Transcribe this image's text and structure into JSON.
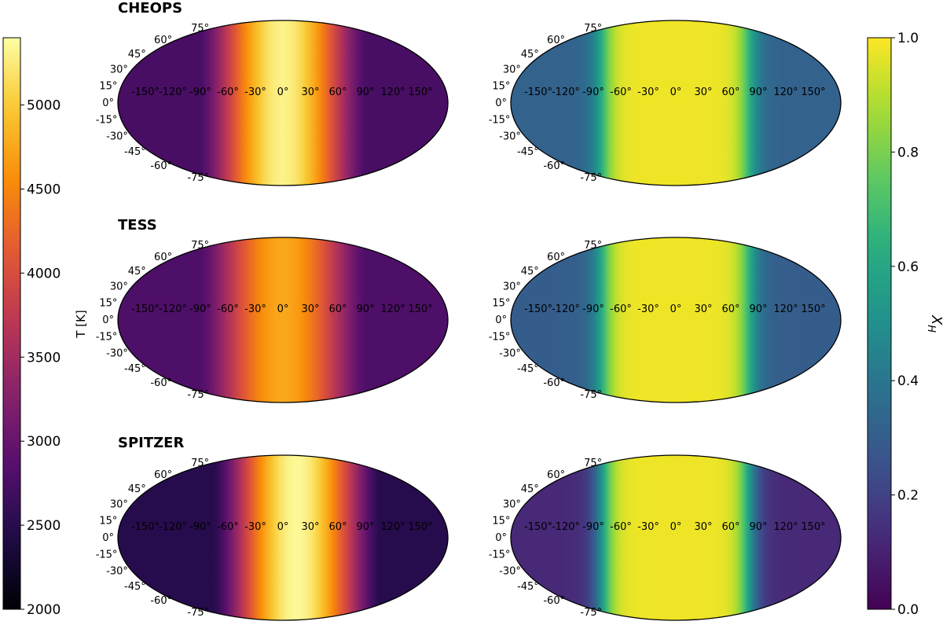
{
  "chart_data": [
    {
      "type": "heatmap",
      "projection": "mollweide",
      "title": "CHEOPS",
      "quantity": "T [K]",
      "colormap": "inferno",
      "longitude_ticks": [
        "-150°",
        "-120°",
        "-90°",
        "-60°",
        "-30°",
        "0°",
        "30°",
        "60°",
        "90°",
        "120°",
        "150°"
      ],
      "latitude_ticks": [
        "75°",
        "60°",
        "45°",
        "30°",
        "15°",
        "0°",
        "-15°",
        "-30°",
        "-45°",
        "-60°",
        "-75°"
      ],
      "hotspot_longitude_deg": 0,
      "max_value": 5300,
      "nightside_value": 2750
    },
    {
      "type": "heatmap",
      "projection": "mollweide",
      "title": "",
      "quantity": "X_H",
      "colormap": "viridis",
      "longitude_ticks": [
        "-150°",
        "-120°",
        "-90°",
        "-60°",
        "-30°",
        "0°",
        "30°",
        "60°",
        "90°",
        "120°",
        "150°"
      ],
      "latitude_ticks": [
        "75°",
        "60°",
        "45°",
        "30°",
        "15°",
        "0°",
        "-15°",
        "-30°",
        "-45°",
        "-60°",
        "-75°"
      ],
      "plateau_value": 0.98,
      "plateau_halfwidth_deg": 80,
      "nightside_value": 0.32
    },
    {
      "type": "heatmap",
      "projection": "mollweide",
      "title": "TESS",
      "quantity": "T [K]",
      "colormap": "inferno",
      "longitude_ticks": [
        "-150°",
        "-120°",
        "-90°",
        "-60°",
        "-30°",
        "0°",
        "30°",
        "60°",
        "90°",
        "120°",
        "150°"
      ],
      "latitude_ticks": [
        "75°",
        "60°",
        "45°",
        "30°",
        "15°",
        "0°",
        "-15°",
        "-30°",
        "-45°",
        "-60°",
        "-75°"
      ],
      "hotspot_longitude_deg": 0,
      "max_value": 4750,
      "nightside_value": 2800
    },
    {
      "type": "heatmap",
      "projection": "mollweide",
      "title": "",
      "quantity": "X_H",
      "colormap": "viridis",
      "longitude_ticks": [
        "-150°",
        "-120°",
        "-90°",
        "-60°",
        "-30°",
        "0°",
        "30°",
        "60°",
        "90°",
        "120°",
        "150°"
      ],
      "latitude_ticks": [
        "75°",
        "60°",
        "45°",
        "30°",
        "15°",
        "0°",
        "-15°",
        "-30°",
        "-45°",
        "-60°",
        "-75°"
      ],
      "plateau_value": 0.98,
      "plateau_halfwidth_deg": 80,
      "nightside_value": 0.3
    },
    {
      "type": "heatmap",
      "projection": "mollweide",
      "title": "SPITZER",
      "quantity": "T [K]",
      "colormap": "inferno",
      "longitude_ticks": [
        "-150°",
        "-120°",
        "-90°",
        "-60°",
        "-30°",
        "0°",
        "30°",
        "60°",
        "90°",
        "120°",
        "150°"
      ],
      "latitude_ticks": [
        "75°",
        "60°",
        "45°",
        "30°",
        "15°",
        "0°",
        "-15°",
        "-30°",
        "-45°",
        "-60°",
        "-75°"
      ],
      "hotspot_longitude_deg": 15,
      "max_value": 5350,
      "nightside_value": 2500
    },
    {
      "type": "heatmap",
      "projection": "mollweide",
      "title": "",
      "quantity": "X_H",
      "colormap": "viridis",
      "longitude_ticks": [
        "-150°",
        "-120°",
        "-90°",
        "-60°",
        "-30°",
        "0°",
        "30°",
        "60°",
        "90°",
        "120°",
        "150°"
      ],
      "latitude_ticks": [
        "75°",
        "60°",
        "45°",
        "30°",
        "15°",
        "0°",
        "-15°",
        "-30°",
        "-45°",
        "-60°",
        "-75°"
      ],
      "plateau_value": 0.98,
      "plateau_halfwidth_deg": 80,
      "nightside_value": 0.12
    }
  ],
  "colorbars": {
    "temperature": {
      "label": "T [K]",
      "colormap": "inferno",
      "range": [
        2000,
        5400
      ],
      "ticks": [
        "2000",
        "2500",
        "3000",
        "3500",
        "4000",
        "4500",
        "5000"
      ],
      "tick_values": [
        2000,
        2500,
        3000,
        3500,
        4000,
        4500,
        5000
      ]
    },
    "xh": {
      "label": "X",
      "label_subscript": "H",
      "colormap": "viridis",
      "range": [
        0,
        1
      ],
      "ticks": [
        "0.0",
        "0.2",
        "0.4",
        "0.6",
        "0.8",
        "1.0"
      ],
      "tick_values": [
        0,
        0.2,
        0.4,
        0.6,
        0.8,
        1.0
      ]
    }
  }
}
